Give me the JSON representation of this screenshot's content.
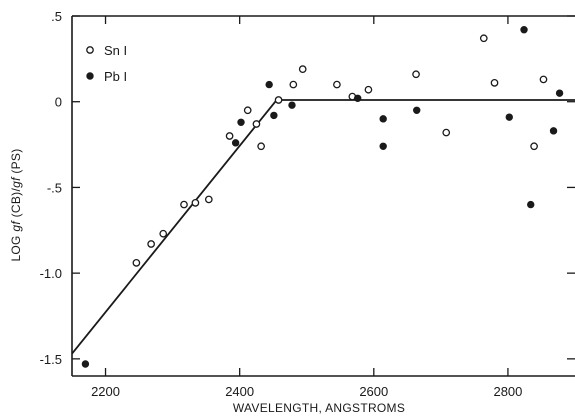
{
  "chart_data": {
    "type": "scatter",
    "title": "",
    "xlabel": "WAVELENGTH, ANGSTROMS",
    "ylabel": "LOG gf (CB)/gf (PS)",
    "xlim": [
      2150,
      2900
    ],
    "ylim": [
      -1.6,
      0.5
    ],
    "x_ticks": [
      2200,
      2400,
      2600,
      2800
    ],
    "x_tick_labels": [
      "2200",
      "2400",
      "2600",
      "2800"
    ],
    "y_ticks": [
      0.5,
      0,
      -0.5,
      -1.0,
      -1.5
    ],
    "y_tick_labels_left": [
      ".5",
      "0",
      "-.5",
      "-1.0",
      "-1.5"
    ],
    "grid": false,
    "legend_position": "top-left",
    "series": [
      {
        "name": "Sn I",
        "marker": "open-circle",
        "points": [
          [
            2246,
            -0.94
          ],
          [
            2268,
            -0.83
          ],
          [
            2286,
            -0.77
          ],
          [
            2317,
            -0.6
          ],
          [
            2334,
            -0.59
          ],
          [
            2354,
            -0.57
          ],
          [
            2385,
            -0.2
          ],
          [
            2412,
            -0.05
          ],
          [
            2425,
            -0.13
          ],
          [
            2432,
            -0.26
          ],
          [
            2458,
            0.01
          ],
          [
            2480,
            0.1
          ],
          [
            2494,
            0.19
          ],
          [
            2545,
            0.1
          ],
          [
            2568,
            0.03
          ],
          [
            2592,
            0.07
          ],
          [
            2663,
            0.16
          ],
          [
            2708,
            -0.18
          ],
          [
            2764,
            0.37
          ],
          [
            2780,
            0.11
          ],
          [
            2839,
            -0.26
          ],
          [
            2853,
            0.13
          ]
        ]
      },
      {
        "name": "Pb I",
        "marker": "filled-circle",
        "points": [
          [
            2170,
            -1.53
          ],
          [
            2394,
            -0.24
          ],
          [
            2402,
            -0.12
          ],
          [
            2444,
            0.1
          ],
          [
            2451,
            -0.08
          ],
          [
            2478,
            -0.02
          ],
          [
            2576,
            0.02
          ],
          [
            2614,
            -0.1
          ],
          [
            2614,
            -0.26
          ],
          [
            2664,
            -0.05
          ],
          [
            2802,
            -0.09
          ],
          [
            2824,
            0.42
          ],
          [
            2834,
            -0.6
          ],
          [
            2868,
            -0.17
          ],
          [
            2877,
            0.05
          ]
        ]
      }
    ],
    "fit_line": {
      "points": [
        [
          2150,
          -1.47
        ],
        [
          2455,
          0.01
        ],
        [
          2900,
          0.01
        ]
      ]
    }
  }
}
